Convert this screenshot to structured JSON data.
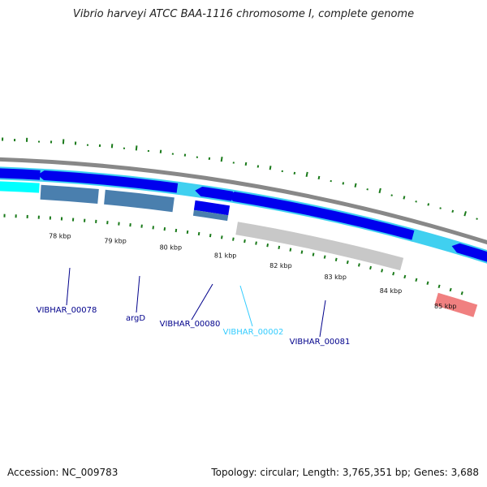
{
  "header": {
    "title": "Vibrio harveyi ATCC BAA-1116 chromosome I, complete genome"
  },
  "footer": {
    "accession": "Accession: NC_009783",
    "summary": "Topology: circular; Length: 3,765,351 bp; Genes: 3,688"
  },
  "map": {
    "kbp_ticks": [
      "78 kbp",
      "79 kbp",
      "80 kbp",
      "81 kbp",
      "82 kbp",
      "83 kbp",
      "84 kbp",
      "85 kbp"
    ],
    "gene_labels": [
      {
        "id": "VIBHAR_00078",
        "text": "VIBHAR_00078",
        "color": "#00008b"
      },
      {
        "id": "argD",
        "text": "argD",
        "color": "#00008b"
      },
      {
        "id": "VIBHAR_00080",
        "text": "VIBHAR_00080",
        "color": "#00008b"
      },
      {
        "id": "VIBHAR_00002",
        "text": "VIBHAR_00002",
        "color": "#33ccff"
      },
      {
        "id": "VIBHAR_00081",
        "text": "VIBHAR_00081",
        "color": "#00008b"
      }
    ],
    "colors": {
      "cds": "#0000ee",
      "gene": "#40d0f0",
      "gene_light": "#00ffff",
      "steel": "#4a7fae",
      "pseudo": "#c8c8c8",
      "rna": "#f08080",
      "backbone": "#888888",
      "gc_tick": "#1a7a1a"
    }
  }
}
